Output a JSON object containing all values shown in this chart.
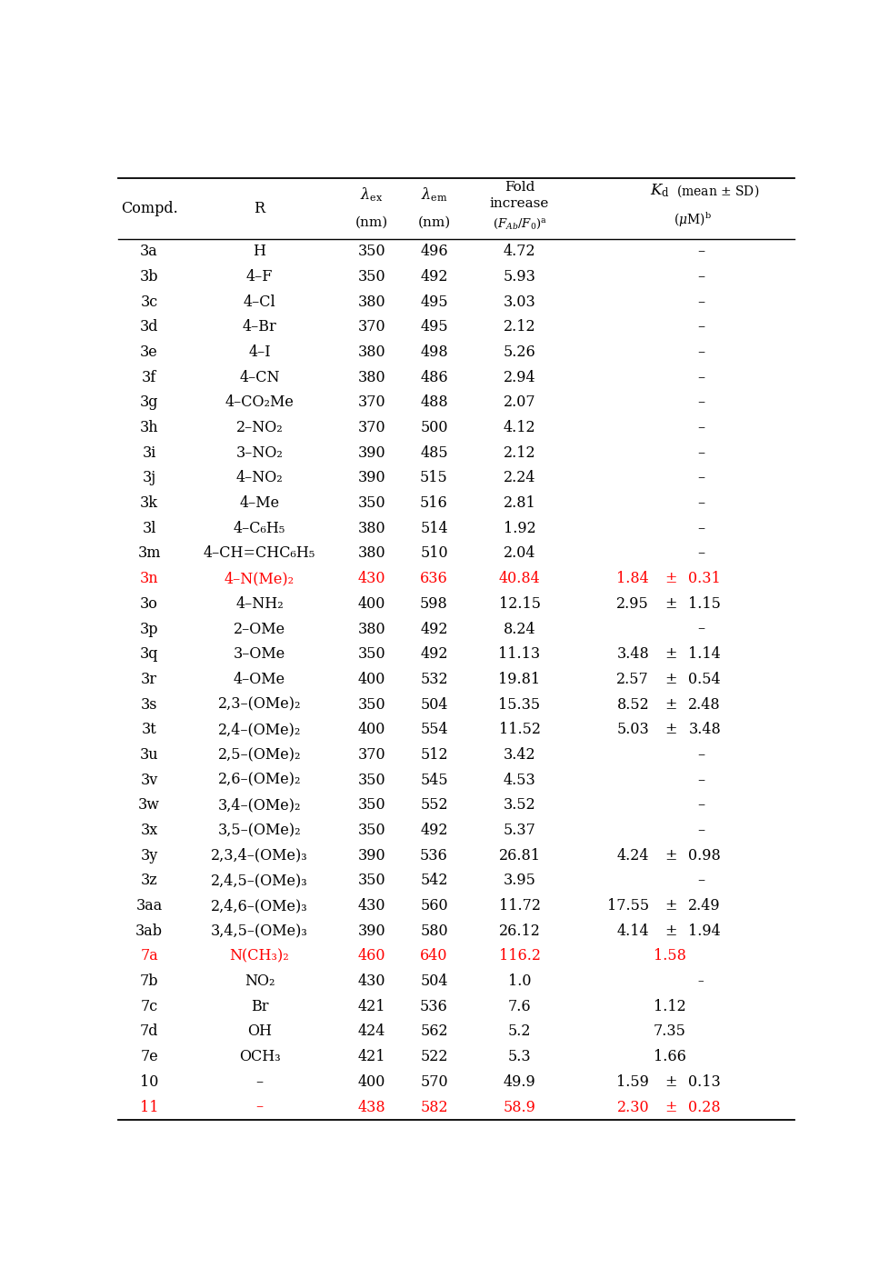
{
  "rows": [
    {
      "compd": "3a",
      "R": "H",
      "lex": "350",
      "lem": "496",
      "fold": "4.72",
      "kd_val": "",
      "kd_err": "",
      "kd_dash": true,
      "color": "black"
    },
    {
      "compd": "3b",
      "R": "4–F",
      "lex": "350",
      "lem": "492",
      "fold": "5.93",
      "kd_val": "",
      "kd_err": "",
      "kd_dash": true,
      "color": "black"
    },
    {
      "compd": "3c",
      "R": "4–Cl",
      "lex": "380",
      "lem": "495",
      "fold": "3.03",
      "kd_val": "",
      "kd_err": "",
      "kd_dash": true,
      "color": "black"
    },
    {
      "compd": "3d",
      "R": "4–Br",
      "lex": "370",
      "lem": "495",
      "fold": "2.12",
      "kd_val": "",
      "kd_err": "",
      "kd_dash": true,
      "color": "black"
    },
    {
      "compd": "3e",
      "R": "4–I",
      "lex": "380",
      "lem": "498",
      "fold": "5.26",
      "kd_val": "",
      "kd_err": "",
      "kd_dash": true,
      "color": "black"
    },
    {
      "compd": "3f",
      "R": "4–CN",
      "lex": "380",
      "lem": "486",
      "fold": "2.94",
      "kd_val": "",
      "kd_err": "",
      "kd_dash": true,
      "color": "black"
    },
    {
      "compd": "3g",
      "R": "4–CO₂Me",
      "lex": "370",
      "lem": "488",
      "fold": "2.07",
      "kd_val": "",
      "kd_err": "",
      "kd_dash": true,
      "color": "black"
    },
    {
      "compd": "3h",
      "R": "2–NO₂",
      "lex": "370",
      "lem": "500",
      "fold": "4.12",
      "kd_val": "",
      "kd_err": "",
      "kd_dash": true,
      "color": "black"
    },
    {
      "compd": "3i",
      "R": "3–NO₂",
      "lex": "390",
      "lem": "485",
      "fold": "2.12",
      "kd_val": "",
      "kd_err": "",
      "kd_dash": true,
      "color": "black"
    },
    {
      "compd": "3j",
      "R": "4–NO₂",
      "lex": "390",
      "lem": "515",
      "fold": "2.24",
      "kd_val": "",
      "kd_err": "",
      "kd_dash": true,
      "color": "black"
    },
    {
      "compd": "3k",
      "R": "4–Me",
      "lex": "350",
      "lem": "516",
      "fold": "2.81",
      "kd_val": "",
      "kd_err": "",
      "kd_dash": true,
      "color": "black"
    },
    {
      "compd": "3l",
      "R": "4–C₆H₅",
      "lex": "380",
      "lem": "514",
      "fold": "1.92",
      "kd_val": "",
      "kd_err": "",
      "kd_dash": true,
      "color": "black"
    },
    {
      "compd": "3m",
      "R": "4–CH=CHC₆H₅",
      "lex": "380",
      "lem": "510",
      "fold": "2.04",
      "kd_val": "",
      "kd_err": "",
      "kd_dash": true,
      "color": "black"
    },
    {
      "compd": "3n",
      "R": "4–N(Me)₂",
      "lex": "430",
      "lem": "636",
      "fold": "40.84",
      "kd_val": "1.84",
      "kd_err": "0.31",
      "kd_dash": false,
      "color": "red"
    },
    {
      "compd": "3o",
      "R": "4–NH₂",
      "lex": "400",
      "lem": "598",
      "fold": "12.15",
      "kd_val": "2.95",
      "kd_err": "1.15",
      "kd_dash": false,
      "color": "black"
    },
    {
      "compd": "3p",
      "R": "2–OMe",
      "lex": "380",
      "lem": "492",
      "fold": "8.24",
      "kd_val": "",
      "kd_err": "",
      "kd_dash": true,
      "color": "black"
    },
    {
      "compd": "3q",
      "R": "3–OMe",
      "lex": "350",
      "lem": "492",
      "fold": "11.13",
      "kd_val": "3.48",
      "kd_err": "1.14",
      "kd_dash": false,
      "color": "black"
    },
    {
      "compd": "3r",
      "R": "4–OMe",
      "lex": "400",
      "lem": "532",
      "fold": "19.81",
      "kd_val": "2.57",
      "kd_err": "0.54",
      "kd_dash": false,
      "color": "black"
    },
    {
      "compd": "3s",
      "R": "2,3–(OMe)₂",
      "lex": "350",
      "lem": "504",
      "fold": "15.35",
      "kd_val": "8.52",
      "kd_err": "2.48",
      "kd_dash": false,
      "color": "black"
    },
    {
      "compd": "3t",
      "R": "2,4–(OMe)₂",
      "lex": "400",
      "lem": "554",
      "fold": "11.52",
      "kd_val": "5.03",
      "kd_err": "3.48",
      "kd_dash": false,
      "color": "black"
    },
    {
      "compd": "3u",
      "R": "2,5–(OMe)₂",
      "lex": "370",
      "lem": "512",
      "fold": "3.42",
      "kd_val": "",
      "kd_err": "",
      "kd_dash": true,
      "color": "black"
    },
    {
      "compd": "3v",
      "R": "2,6–(OMe)₂",
      "lex": "350",
      "lem": "545",
      "fold": "4.53",
      "kd_val": "",
      "kd_err": "",
      "kd_dash": true,
      "color": "black"
    },
    {
      "compd": "3w",
      "R": "3,4–(OMe)₂",
      "lex": "350",
      "lem": "552",
      "fold": "3.52",
      "kd_val": "",
      "kd_err": "",
      "kd_dash": true,
      "color": "black"
    },
    {
      "compd": "3x",
      "R": "3,5–(OMe)₂",
      "lex": "350",
      "lem": "492",
      "fold": "5.37",
      "kd_val": "",
      "kd_err": "",
      "kd_dash": true,
      "color": "black"
    },
    {
      "compd": "3y",
      "R": "2,3,4–(OMe)₃",
      "lex": "390",
      "lem": "536",
      "fold": "26.81",
      "kd_val": "4.24",
      "kd_err": "0.98",
      "kd_dash": false,
      "color": "black"
    },
    {
      "compd": "3z",
      "R": "2,4,5–(OMe)₃",
      "lex": "350",
      "lem": "542",
      "fold": "3.95",
      "kd_val": "",
      "kd_err": "",
      "kd_dash": true,
      "color": "black"
    },
    {
      "compd": "3aa",
      "R": "2,4,6–(OMe)₃",
      "lex": "430",
      "lem": "560",
      "fold": "11.72",
      "kd_val": "17.55",
      "kd_err": "2.49",
      "kd_dash": false,
      "color": "black"
    },
    {
      "compd": "3ab",
      "R": "3,4,5–(OMe)₃",
      "lex": "390",
      "lem": "580",
      "fold": "26.12",
      "kd_val": "4.14",
      "kd_err": "1.94",
      "kd_dash": false,
      "color": "black"
    },
    {
      "compd": "7a",
      "R": "N(CH₃)₂",
      "lex": "460",
      "lem": "640",
      "fold": "116.2",
      "kd_val": "1.58",
      "kd_err": "",
      "kd_dash": false,
      "color": "red"
    },
    {
      "compd": "7b",
      "R": "NO₂",
      "lex": "430",
      "lem": "504",
      "fold": "1.0",
      "kd_val": "",
      "kd_err": "",
      "kd_dash": true,
      "kd_dash_small": true,
      "color": "black"
    },
    {
      "compd": "7c",
      "R": "Br",
      "lex": "421",
      "lem": "536",
      "fold": "7.6",
      "kd_val": "1.12",
      "kd_err": "",
      "kd_dash": false,
      "color": "black"
    },
    {
      "compd": "7d",
      "R": "OH",
      "lex": "424",
      "lem": "562",
      "fold": "5.2",
      "kd_val": "7.35",
      "kd_err": "",
      "kd_dash": false,
      "color": "black"
    },
    {
      "compd": "7e",
      "R": "OCH₃",
      "lex": "421",
      "lem": "522",
      "fold": "5.3",
      "kd_val": "1.66",
      "kd_err": "",
      "kd_dash": false,
      "color": "black"
    },
    {
      "compd": "10",
      "R": "–",
      "lex": "400",
      "lem": "570",
      "fold": "49.9",
      "kd_val": "1.59",
      "kd_err": "0.13",
      "kd_dash": false,
      "color": "black"
    },
    {
      "compd": "11",
      "R": "–",
      "lex": "438",
      "lem": "582",
      "fold": "58.9",
      "kd_val": "2.30",
      "kd_err": "0.28",
      "kd_dash": false,
      "color": "red"
    }
  ],
  "bg_color": "#ffffff",
  "font_size": 11.5
}
